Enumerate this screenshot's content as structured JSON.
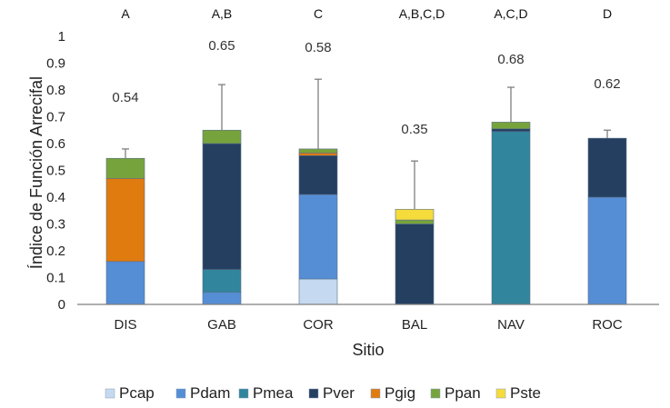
{
  "chart_data": {
    "type": "bar",
    "stacked": true,
    "title": "",
    "xlabel": "Sitio",
    "ylabel": "Índice de Función Arrecifal",
    "ylim": [
      0,
      1
    ],
    "yticks": [
      "0",
      "0.1",
      "0.2",
      "0.3",
      "0.4",
      "0.5",
      "0.6",
      "0.7",
      "0.8",
      "0.9",
      "1"
    ],
    "grid": false,
    "legend_position": "bottom",
    "categories": [
      "DIS",
      "GAB",
      "COR",
      "BAL",
      "NAV",
      "ROC"
    ],
    "series": [
      {
        "name": "Pcap",
        "color": "#c5d9f0",
        "values": [
          0,
          0,
          0.095,
          0,
          0,
          0
        ]
      },
      {
        "name": "Pdam",
        "color": "#558ed5",
        "values": [
          0.16,
          0.045,
          0.315,
          0,
          0,
          0.4
        ]
      },
      {
        "name": "Pmea",
        "color": "#31859c",
        "values": [
          0,
          0.085,
          0,
          0,
          0.645,
          0
        ]
      },
      {
        "name": "Pver",
        "color": "#243f60",
        "values": [
          0,
          0.47,
          0.145,
          0.3,
          0.01,
          0.22
        ]
      },
      {
        "name": "Pgig",
        "color": "#e07b10",
        "values": [
          0.31,
          0,
          0.01,
          0,
          0,
          0
        ]
      },
      {
        "name": "Ppan",
        "color": "#77a33c",
        "values": [
          0.075,
          0.05,
          0.015,
          0.015,
          0.025,
          0
        ]
      },
      {
        "name": "Pste",
        "color": "#f5dc3c",
        "values": [
          0,
          0,
          0,
          0.04,
          0,
          0
        ]
      }
    ],
    "totals": [
      0.545,
      0.65,
      0.58,
      0.355,
      0.68,
      0.62
    ],
    "error_upper": [
      0.58,
      0.82,
      0.84,
      0.535,
      0.81,
      0.65
    ],
    "value_labels": [
      "0.54",
      "0.65",
      "0.58",
      "0.35",
      "0.68",
      "0.62"
    ],
    "group_letters": [
      "A",
      "A,B",
      "C",
      "A,B,C,D",
      "A,C,D",
      "D"
    ]
  }
}
